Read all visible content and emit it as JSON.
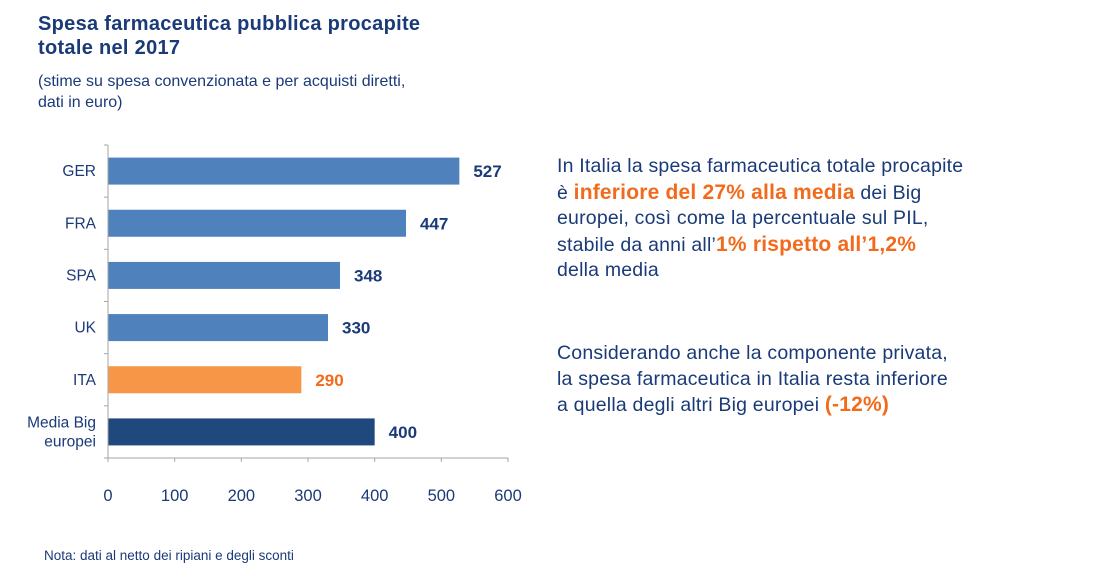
{
  "header": {
    "title_line1": "Spesa farmaceutica pubblica procapite",
    "title_line2": "totale nel 2017",
    "subtitle_line1": "(stime su spesa convenzionata e per acquisti diretti,",
    "subtitle_line2": "dati in euro)"
  },
  "chart_data": {
    "type": "bar",
    "orientation": "horizontal",
    "title": "Spesa farmaceutica pubblica procapite totale nel 2017",
    "subtitle": "(stime su spesa convenzionata e per acquisti diretti, dati in euro)",
    "xlabel": "",
    "ylabel": "",
    "categories": [
      "GER",
      "FRA",
      "SPA",
      "UK",
      "ITA",
      "Media Big europei"
    ],
    "category_lines": [
      [
        "GER"
      ],
      [
        "FRA"
      ],
      [
        "SPA"
      ],
      [
        "UK"
      ],
      [
        "ITA"
      ],
      [
        "Media Big",
        "europei"
      ]
    ],
    "values": [
      527,
      447,
      348,
      330,
      290,
      400
    ],
    "data_labels": [
      "527",
      "447",
      "348",
      "330",
      "290",
      "400"
    ],
    "bar_colors": [
      "#4f81bd",
      "#4f81bd",
      "#4f81bd",
      "#4f81bd",
      "#f79646",
      "#1f497d"
    ],
    "label_colors": [
      "#1a3a78",
      "#1a3a78",
      "#1a3a78",
      "#1a3a78",
      "#f26a1b",
      "#1a3a78"
    ],
    "xlim": [
      0,
      600
    ],
    "xticks": [
      0,
      100,
      200,
      300,
      400,
      500,
      600
    ],
    "grid": false,
    "legend": "none"
  },
  "note": "Nota: dati al netto dei ripiani e degli sconti",
  "commentary": {
    "p1": {
      "a": "In Italia la spesa farmaceutica totale procapite",
      "b": "è ",
      "hl1": "inferiore del 27% alla media",
      "c": " dei Big",
      "d": "europei, così come la percentuale sul PIL,",
      "e": "stabile da anni all’",
      "hl2": "1% rispetto all’1,2%",
      "f": "della media"
    },
    "p2": {
      "a": "Considerando anche la componente privata,",
      "b": "la spesa farmaceutica in Italia resta inferiore",
      "c": "a quella degli altri Big europei ",
      "hl": "(-12%)"
    }
  },
  "colors": {
    "text": "#1a3a78",
    "accent": "#f26a1b",
    "axis": "#a6a6a6"
  }
}
